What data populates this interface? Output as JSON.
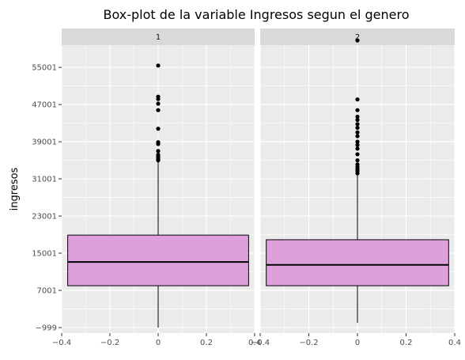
{
  "chart_data": {
    "type": "boxplot",
    "title": "Box-plot de la variable Ingresos segun el genero",
    "ylabel": "ingresos",
    "xlabel": "",
    "facet_var": "genero",
    "ylim": [
      -2200,
      59800
    ],
    "xlim": [
      -0.4,
      0.4
    ],
    "yticks": [
      -999,
      7001,
      15001,
      23001,
      31001,
      39001,
      47001,
      55001
    ],
    "ytick_labels": [
      "−999",
      "7001",
      "15001",
      "23001",
      "31001",
      "39001",
      "47001",
      "55001"
    ],
    "xticks": [
      -0.4,
      -0.2,
      0,
      0.2,
      0.4
    ],
    "xtick_labels": [
      "−0.4",
      "−0.2",
      "0",
      "0.2",
      "0.4"
    ],
    "box_x_range": [
      -0.375,
      0.375
    ],
    "box_fill": "#dda0dd",
    "panel_bg": "#ebebeb",
    "strip_bg": "#d9d9d9",
    "grid": true,
    "panels": [
      {
        "label": "1",
        "whisker_low": -1000,
        "q1": 8000,
        "median": 13100,
        "q3": 18900,
        "whisker_high": 34800,
        "outliers": [
          35000,
          35400,
          35800,
          36200,
          37000,
          38500,
          38900,
          41800,
          45800,
          47200,
          48200,
          48700,
          55400
        ]
      },
      {
        "label": "2",
        "whisker_low": 0,
        "q1": 8000,
        "median": 12500,
        "q3": 17900,
        "whisker_high": 32000,
        "outliers": [
          32200,
          32700,
          33100,
          33600,
          34100,
          35000,
          36300,
          37500,
          38300,
          39000,
          40200,
          41000,
          42000,
          42800,
          43700,
          44400,
          45800,
          48100,
          60800
        ]
      }
    ]
  }
}
